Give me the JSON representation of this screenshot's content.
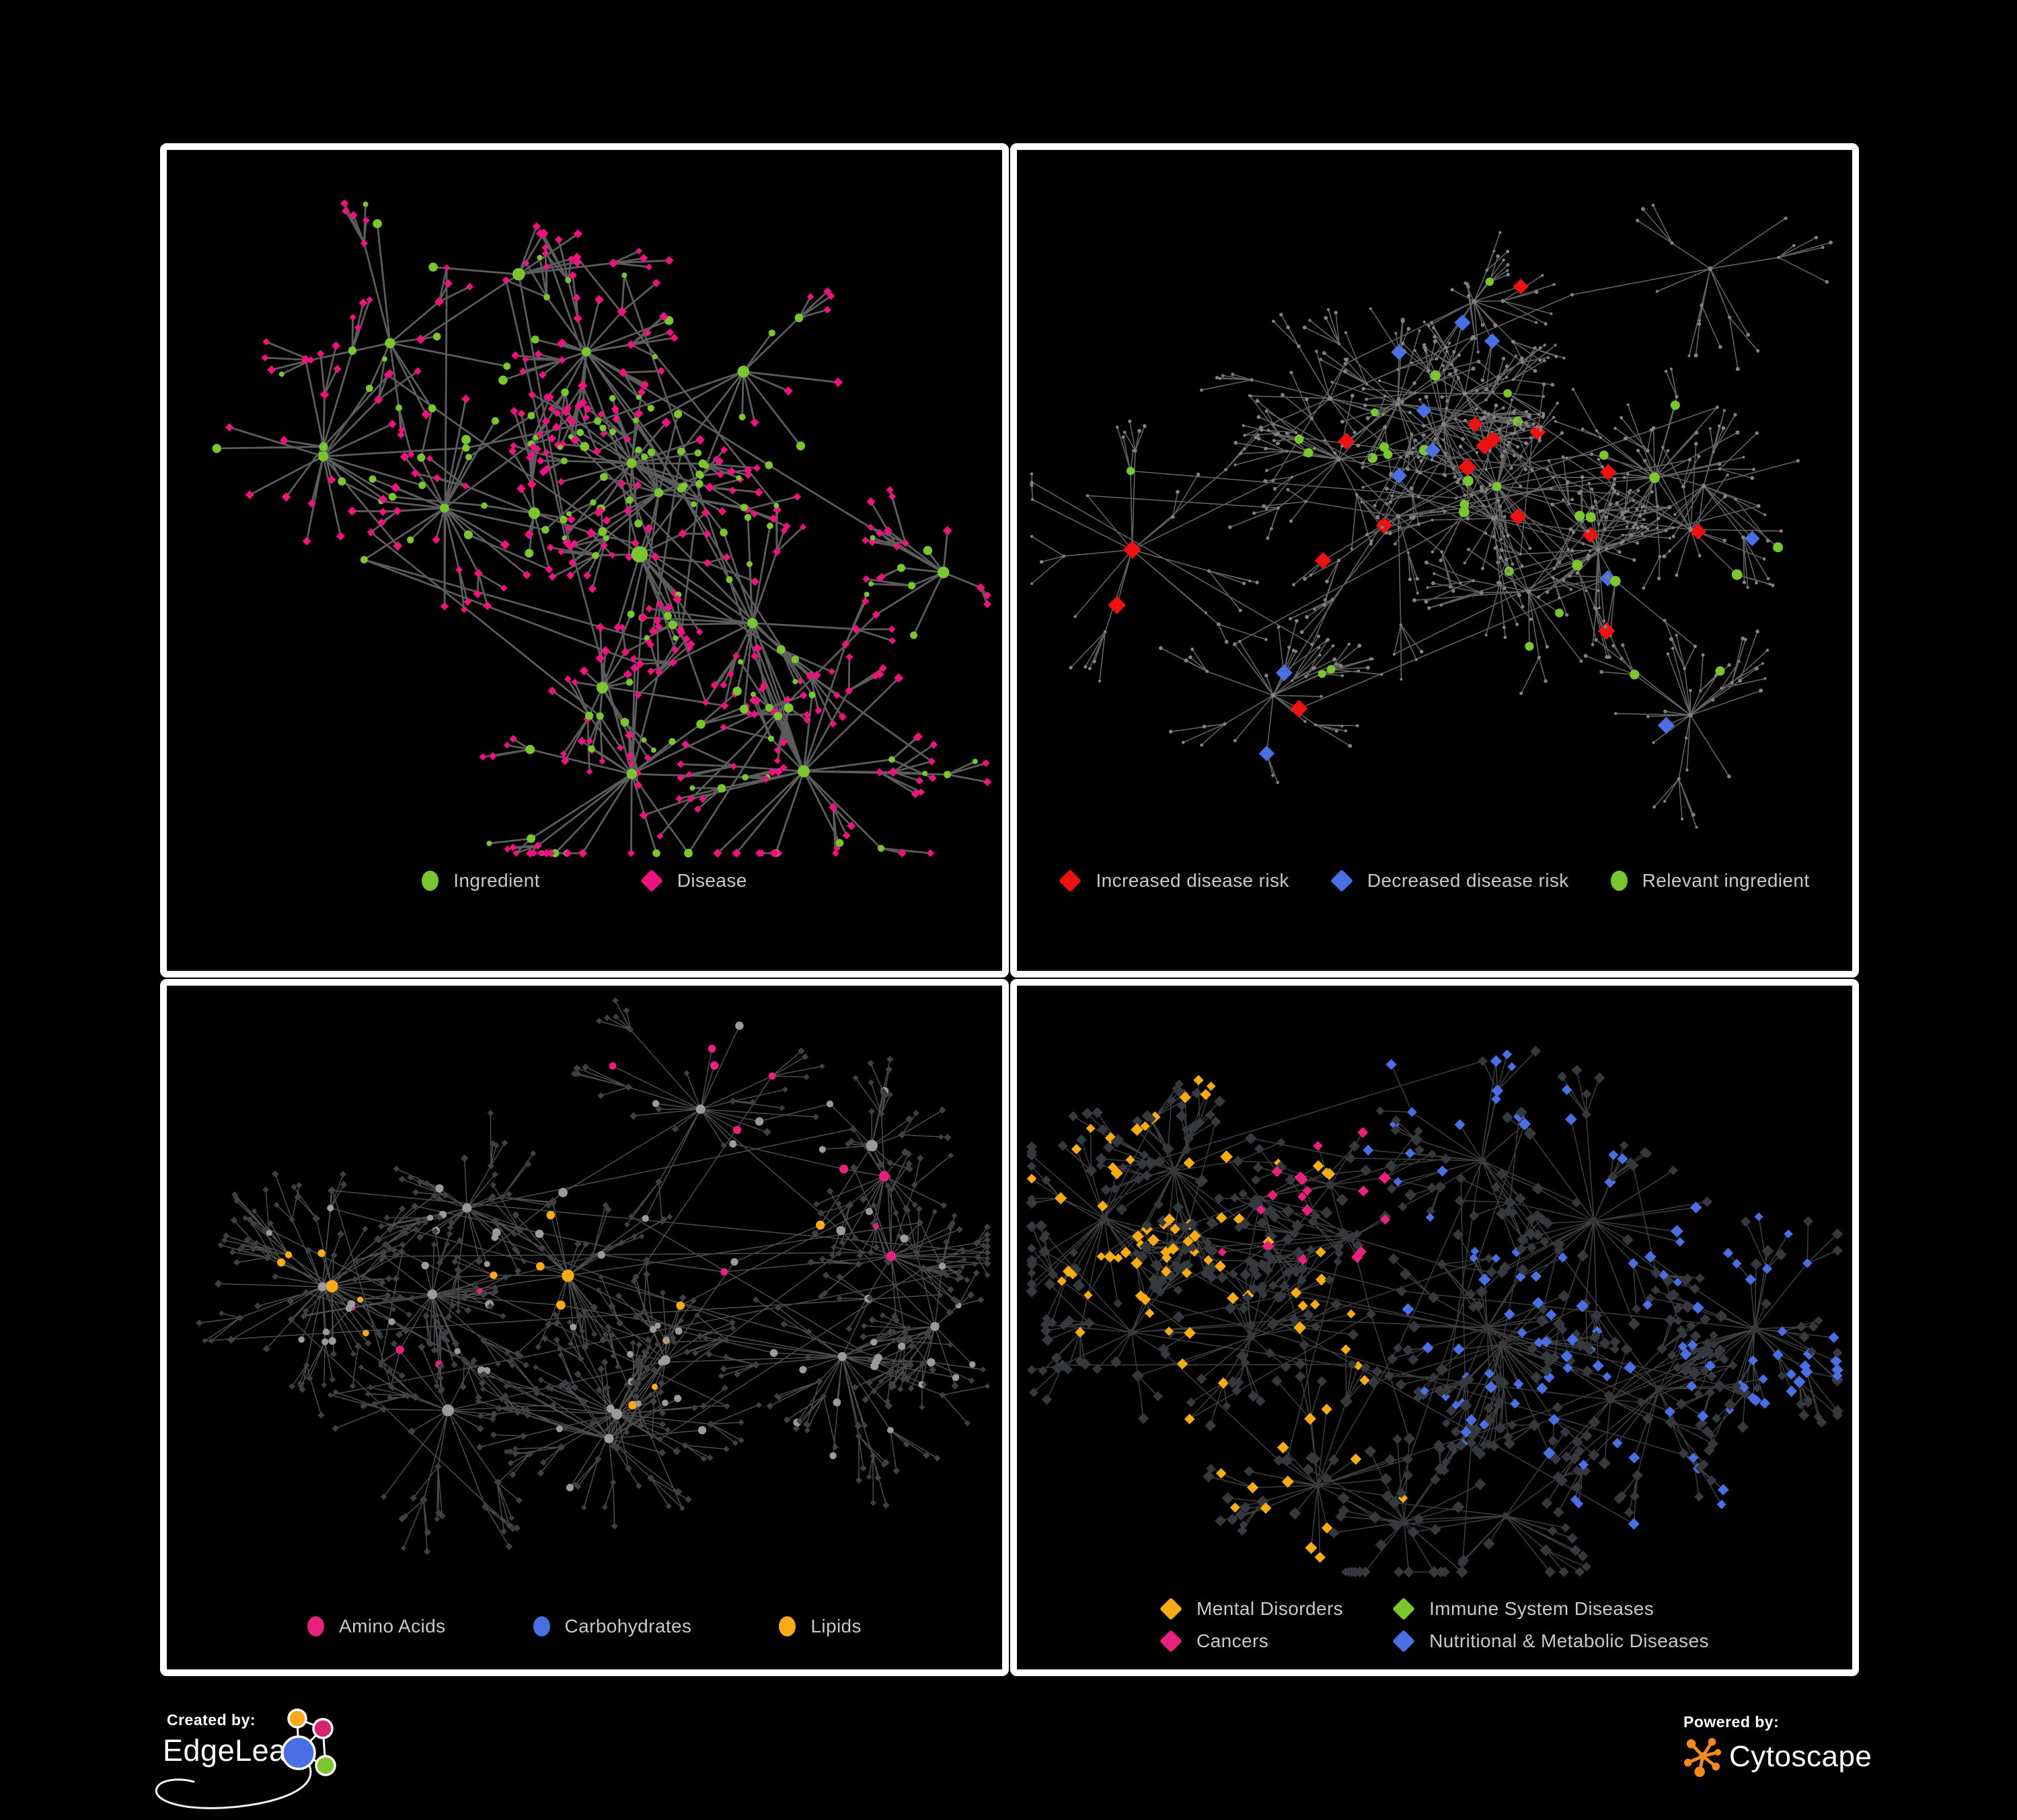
{
  "canvas": {
    "background": "#000000",
    "panel_border": "#ffffff"
  },
  "panels": [
    {
      "id": "ingredient-disease",
      "legend": {
        "items": [
          {
            "label": "Ingredient",
            "shape": "circle",
            "color": "#7ac62f"
          },
          {
            "label": "Disease",
            "shape": "diamond",
            "color": "#ee1380"
          }
        ]
      },
      "network": {
        "seed": 17,
        "clusters": 16,
        "leaves": [
          8,
          26
        ],
        "subProb": 0.38,
        "burstRadius": 145,
        "crossEdges": 20,
        "bottomMargin": 230,
        "legendClear": 175,
        "style": "twoTone",
        "edge": {
          "color": "#6c6c6c",
          "width": 2.8,
          "opacity": 0.85
        },
        "palette": {
          "primary": "#7ac62f",
          "secondary": "#ee1380"
        }
      }
    },
    {
      "id": "disease-risk",
      "legend": {
        "items": [
          {
            "label": "Increased disease risk",
            "shape": "diamond",
            "color": "#ee1111"
          },
          {
            "label": "Decreased disease risk",
            "shape": "diamond",
            "color": "#4a6fe3"
          },
          {
            "label": "Relevant ingredient",
            "shape": "circle",
            "color": "#7ac62f"
          }
        ]
      },
      "network": {
        "seed": 52,
        "clusters": 18,
        "leaves": [
          8,
          24
        ],
        "subProb": 0.5,
        "burstRadius": 130,
        "crossEdges": 24,
        "bottomMargin": 230,
        "legendClear": 175,
        "style": "baseHighlight",
        "edge": {
          "color": "#7b7b7b",
          "width": 1.6,
          "opacity": 0.8
        },
        "palette": {
          "base": "#828282",
          "red": "#ee1111",
          "blue": "#4a6fe3",
          "silver": "#b9bcc0",
          "green": "#7ac62f"
        }
      }
    },
    {
      "id": "nutrient-classes",
      "legend": {
        "items": [
          {
            "label": "Amino Acids",
            "shape": "circle",
            "color": "#e8217c"
          },
          {
            "label": "Carbohydrates",
            "shape": "circle",
            "color": "#4a6fe3"
          },
          {
            "label": "Lipids",
            "shape": "circle",
            "color": "#f7ab16"
          }
        ]
      },
      "network": {
        "seed": 91,
        "clusters": 15,
        "leaves": [
          9,
          28
        ],
        "subProb": 0.42,
        "burstRadius": 120,
        "crossEdges": 20,
        "bottomMargin": 150,
        "legendClear": 115,
        "style": "circlesCats",
        "edge": {
          "color": "#9a9a9a",
          "width": 1.5,
          "opacity": 0.5
        },
        "palette": {
          "gray": "#9b9b9b",
          "dark": "#3d4044",
          "orange": "#f7ab16",
          "pink": "#e8217c",
          "blue": "#4a6fe3"
        }
      }
    },
    {
      "id": "disease-categories",
      "legend": {
        "items": [
          {
            "label": "Mental Disorders",
            "shape": "diamond",
            "color": "#f7ab16"
          },
          {
            "label": "Immune System Diseases",
            "shape": "diamond",
            "color": "#7ac62f"
          },
          {
            "label": "Cancers",
            "shape": "diamond",
            "color": "#e8217c"
          },
          {
            "label": "Nutritional & Metabolic Diseases",
            "shape": "diamond",
            "color": "#4a6fe3"
          }
        ]
      },
      "network": {
        "seed": 64,
        "clusters": 17,
        "leaves": [
          10,
          28
        ],
        "subProb": 0.42,
        "burstRadius": 128,
        "crossEdges": 22,
        "bottomMargin": 170,
        "legendClear": 145,
        "style": "diamondCats",
        "edge": {
          "color": "#8a8a8a",
          "width": 1.5,
          "opacity": 0.45
        },
        "palette": {
          "dark": "#35383c",
          "orange": "#f7ab16",
          "pink": "#e8217c",
          "blue": "#4a6fe3",
          "green": "#7ac62f"
        }
      }
    }
  ],
  "footer": {
    "created_by_label": "Created by:",
    "created_by_name": "EdgeLeap",
    "powered_by_label": "Powered by:",
    "powered_by_name": "Cytoscape",
    "edgeleap_logo_colors": {
      "orange": "#f7ab16",
      "pink": "#d6246e",
      "blue": "#4a6fe3",
      "green": "#7ac62f",
      "stroke": "#ffffff"
    },
    "cytoscape_logo_color": "#f28b1d"
  }
}
